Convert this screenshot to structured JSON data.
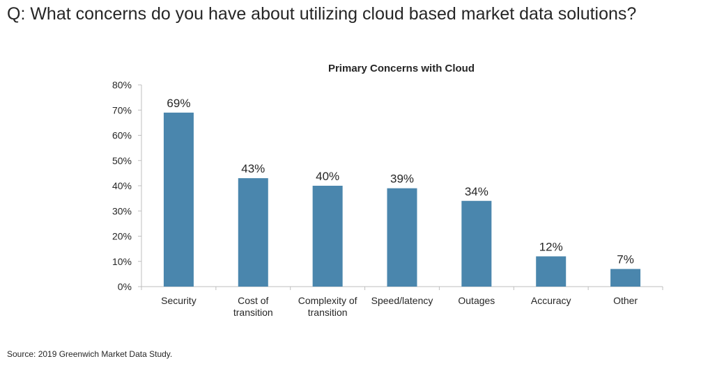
{
  "question": "Q: What concerns do you have about utilizing cloud based market data solutions?",
  "source": "Source: 2019 Greenwich Market Data Study.",
  "colors": {
    "bar": "#4a86ad",
    "axis": "#bfbfbf",
    "text": "#262626"
  },
  "chart_data": {
    "type": "bar",
    "title": "Primary Concerns with Cloud",
    "categories": [
      [
        "Security"
      ],
      [
        "Cost of",
        "transition"
      ],
      [
        "Complexity of",
        "transition"
      ],
      [
        "Speed/latency"
      ],
      [
        "Outages"
      ],
      [
        "Accuracy"
      ],
      [
        "Other"
      ]
    ],
    "values": [
      69,
      43,
      40,
      39,
      34,
      12,
      7
    ],
    "data_labels": [
      "69%",
      "43%",
      "40%",
      "39%",
      "34%",
      "12%",
      "7%"
    ],
    "yticks": [
      "0%",
      "10%",
      "20%",
      "30%",
      "40%",
      "50%",
      "60%",
      "70%",
      "80%"
    ],
    "ylim": [
      0,
      80
    ],
    "xlabel": "",
    "ylabel": "",
    "grid": false
  }
}
